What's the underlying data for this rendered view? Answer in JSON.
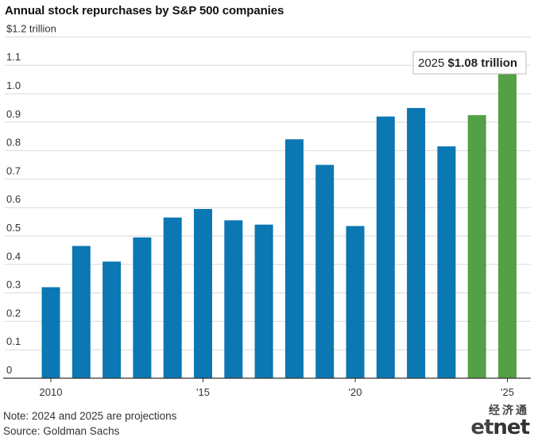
{
  "chart_data": {
    "type": "bar",
    "title": "Annual stock repurchases by S&P 500 companies",
    "y_unit_label": "$1.2 trillion",
    "ylim": [
      0,
      1.2
    ],
    "y_ticks": [
      "0",
      "0.1",
      "0.2",
      "0.3",
      "0.4",
      "0.5",
      "0.6",
      "0.7",
      "0.8",
      "0.9",
      "1.0",
      "1.1",
      "$1.2 trillion"
    ],
    "x_tick_labels": [
      {
        "year": 2010,
        "label": "2010"
      },
      {
        "year": 2015,
        "label": "'15"
      },
      {
        "year": 2020,
        "label": "'20"
      },
      {
        "year": 2025,
        "label": "'25"
      }
    ],
    "grid": true,
    "series": [
      {
        "values": [
          {
            "year": 2010,
            "value": 0.32,
            "projection": false
          },
          {
            "year": 2011,
            "value": 0.465,
            "projection": false
          },
          {
            "year": 2012,
            "value": 0.41,
            "projection": false
          },
          {
            "year": 2013,
            "value": 0.495,
            "projection": false
          },
          {
            "year": 2014,
            "value": 0.565,
            "projection": false
          },
          {
            "year": 2015,
            "value": 0.595,
            "projection": false
          },
          {
            "year": 2016,
            "value": 0.555,
            "projection": false
          },
          {
            "year": 2017,
            "value": 0.54,
            "projection": false
          },
          {
            "year": 2018,
            "value": 0.84,
            "projection": false
          },
          {
            "year": 2019,
            "value": 0.75,
            "projection": false
          },
          {
            "year": 2020,
            "value": 0.535,
            "projection": false
          },
          {
            "year": 2021,
            "value": 0.92,
            "projection": false
          },
          {
            "year": 2022,
            "value": 0.95,
            "projection": false
          },
          {
            "year": 2023,
            "value": 0.815,
            "projection": false
          },
          {
            "year": 2024,
            "value": 0.925,
            "projection": true
          },
          {
            "year": 2025,
            "value": 1.08,
            "projection": true
          }
        ]
      }
    ],
    "annotation": {
      "year_text": "2025",
      "value_text": "$1.08 trillion"
    },
    "colors": {
      "actual": "#0b77b3",
      "projection": "#54a046",
      "grid": "#d9d9d9",
      "axis": "#333333"
    }
  },
  "notes": {
    "note": "Note: 2024 and 2025 are projections",
    "source": "Source: Goldman Sachs"
  },
  "logo": {
    "chinese": "经济通",
    "english_part1": "et",
    "english_part2": "net"
  }
}
